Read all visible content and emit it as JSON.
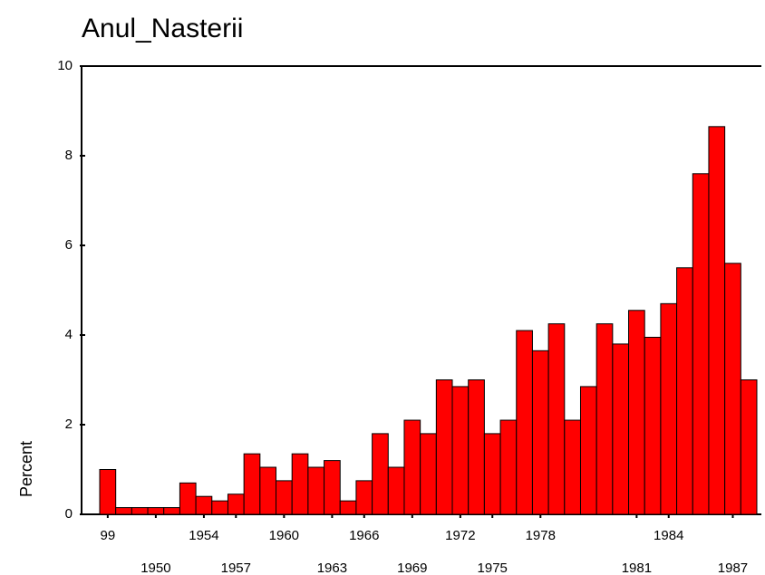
{
  "chart_data": {
    "type": "bar",
    "title": "Anul_Nasterii",
    "y_label": "Percent",
    "categories": [
      "99",
      null,
      null,
      "1950",
      null,
      null,
      "1954",
      null,
      "1957",
      null,
      null,
      "1960",
      null,
      null,
      "1963",
      null,
      "1966",
      null,
      null,
      "1969",
      null,
      null,
      "1972",
      null,
      "1975",
      null,
      null,
      "1978",
      null,
      null,
      null,
      null,
      null,
      "1981",
      null,
      "1984",
      null,
      null,
      null,
      "1987",
      null
    ],
    "values": [
      1.0,
      0.15,
      0.15,
      0.15,
      0.15,
      0.7,
      0.4,
      0.3,
      0.45,
      1.35,
      1.05,
      0.75,
      1.35,
      1.05,
      1.2,
      0.3,
      0.75,
      1.8,
      1.05,
      2.1,
      1.8,
      3.0,
      2.85,
      3.0,
      1.8,
      2.1,
      4.1,
      3.65,
      4.25,
      2.1,
      2.85,
      4.25,
      3.8,
      4.55,
      3.95,
      4.7,
      5.5,
      7.6,
      8.65,
      5.6,
      3.0
    ],
    "color": "#ff0000",
    "ylim": [
      0,
      10
    ],
    "yticks": [
      0,
      2,
      4,
      6,
      8,
      10
    ]
  }
}
